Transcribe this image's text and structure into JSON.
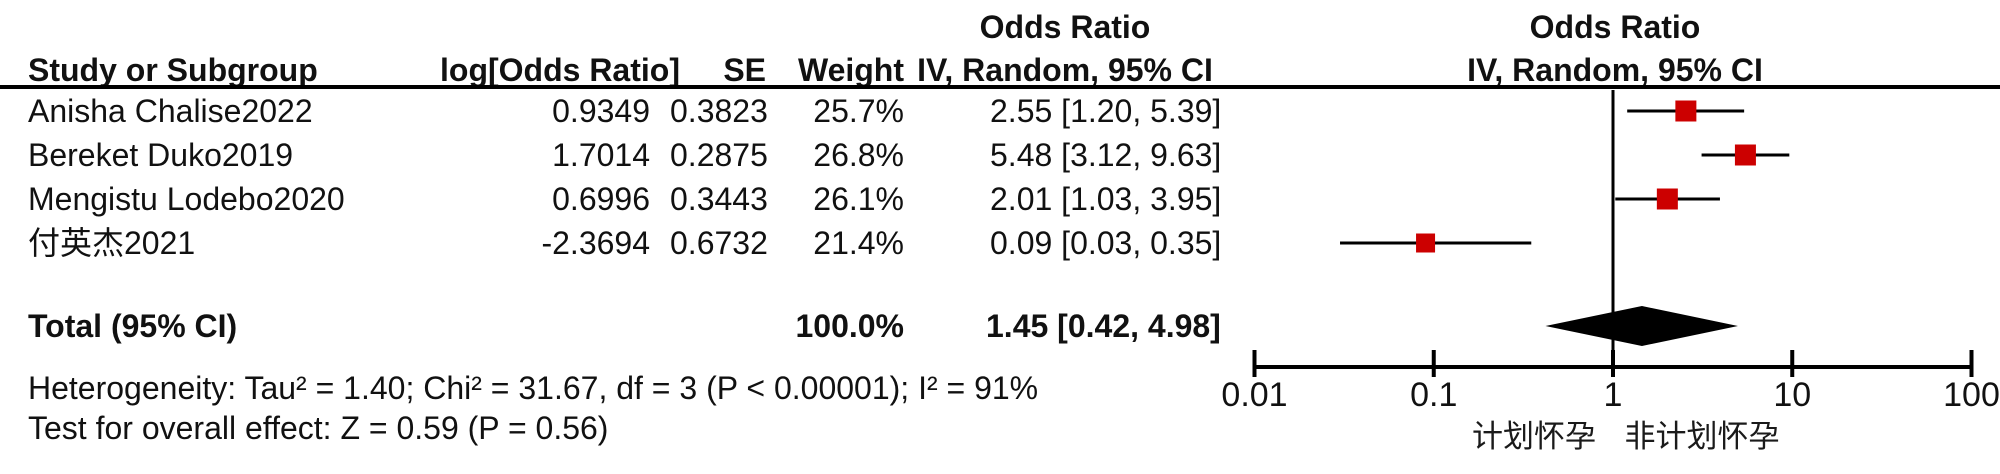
{
  "table": {
    "header": {
      "study": "Study or Subgroup",
      "log_or": "log[Odds Ratio]",
      "se": "SE",
      "weight": "Weight",
      "effect_title": "Odds Ratio",
      "effect_sub": "IV, Random, 95% CI",
      "plot_title": "Odds Ratio",
      "plot_sub": "IV, Random, 95% CI"
    },
    "rows": [
      {
        "study": "Anisha Chalise2022",
        "log_or": "0.9349",
        "se": "0.3823",
        "weight": "25.7%",
        "ci": "2.55 [1.20, 5.39]"
      },
      {
        "study": "Bereket Duko2019",
        "log_or": "1.7014",
        "se": "0.2875",
        "weight": "26.8%",
        "ci": "5.48 [3.12, 9.63]"
      },
      {
        "study": "Mengistu Lodebo2020",
        "log_or": "0.6996",
        "se": "0.3443",
        "weight": "26.1%",
        "ci": "2.01 [1.03, 3.95]"
      },
      {
        "study": "付英杰2021",
        "log_or": "-2.3694",
        "se": "0.6732",
        "weight": "21.4%",
        "ci": "0.09 [0.03, 0.35]"
      }
    ],
    "total": {
      "label": "Total (95% CI)",
      "weight": "100.0%",
      "ci": "1.45 [0.42, 4.98]"
    },
    "heterogeneity": "Heterogeneity: Tau² = 1.40; Chi² = 31.67, df = 3 (P < 0.00001); I² = 91%",
    "overall_effect": "Test for overall effect: Z = 0.59 (P = 0.56)"
  },
  "chart_data": {
    "type": "scatter",
    "subtype": "forest-plot",
    "title": "Odds Ratio — IV, Random, 95% CI",
    "x_axis": {
      "scale": "log",
      "range": [
        0.01,
        100
      ],
      "ticks": [
        0.01,
        0.1,
        1,
        10,
        100
      ],
      "tick_labels": [
        "0.01",
        "0.1",
        "1",
        "10",
        "100"
      ],
      "zero_line_at": 1
    },
    "series": [
      {
        "name": "Anisha Chalise2022",
        "or": 2.55,
        "ci_low": 1.2,
        "ci_high": 5.39,
        "weight_pct": 25.7
      },
      {
        "name": "Bereket Duko2019",
        "or": 5.48,
        "ci_low": 3.12,
        "ci_high": 9.63,
        "weight_pct": 26.8
      },
      {
        "name": "Mengistu Lodebo2020",
        "or": 2.01,
        "ci_low": 1.03,
        "ci_high": 3.95,
        "weight_pct": 26.1
      },
      {
        "name": "付英杰2021",
        "or": 0.09,
        "ci_low": 0.03,
        "ci_high": 0.35,
        "weight_pct": 21.4
      }
    ],
    "total": {
      "or": 1.45,
      "ci_low": 0.42,
      "ci_high": 4.98,
      "weight_pct": 100.0
    },
    "x_labels_below": [
      "计划怀孕",
      "非计划怀孕"
    ],
    "marker_color": "#cc0000",
    "line_color": "#000000",
    "diamond_color": "#000000"
  }
}
